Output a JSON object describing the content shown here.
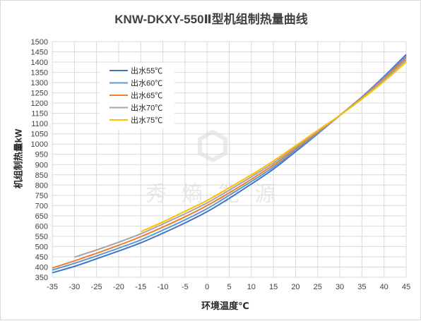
{
  "chart_data": {
    "type": "line",
    "title": "KNW-DKXY-550Ⅱ型机组制热量曲线",
    "xlabel": "环境温度℃",
    "ylabel": "机组制热量kW",
    "xlim": [
      -35,
      45
    ],
    "ylim": [
      350,
      1500
    ],
    "x_ticks": [
      -35,
      -30,
      -25,
      -20,
      -15,
      -10,
      -5,
      0,
      5,
      10,
      15,
      20,
      25,
      30,
      35,
      40,
      45
    ],
    "y_ticks": [
      350,
      400,
      450,
      500,
      550,
      600,
      650,
      700,
      750,
      800,
      850,
      900,
      950,
      1000,
      1050,
      1100,
      1150,
      1200,
      1250,
      1300,
      1350,
      1400,
      1450,
      1500
    ],
    "grid": true,
    "legend_position": "upper-left",
    "series": [
      {
        "name": "出水55℃",
        "color": "#4472c4",
        "x": [
          -35,
          -30,
          -25,
          -20,
          -15,
          -10,
          -5,
          0,
          5,
          10,
          15,
          20,
          25,
          30,
          35,
          40,
          45
        ],
        "y": [
          372,
          403,
          440,
          478,
          518,
          565,
          615,
          670,
          735,
          805,
          878,
          963,
          1050,
          1140,
          1230,
          1330,
          1437
        ]
      },
      {
        "name": "出水60℃",
        "color": "#5b9bd5",
        "x": [
          -35,
          -30,
          -25,
          -20,
          -15,
          -10,
          -5,
          0,
          5,
          10,
          15,
          20,
          25,
          30,
          35,
          40,
          45
        ],
        "y": [
          385,
          418,
          454,
          492,
          532,
          580,
          630,
          685,
          750,
          817,
          888,
          970,
          1053,
          1140,
          1228,
          1325,
          1428
        ]
      },
      {
        "name": "出水65℃",
        "color": "#ed7d31",
        "x": [
          -35,
          -30,
          -25,
          -20,
          -15,
          -10,
          -5,
          0,
          5,
          10,
          15,
          20,
          25,
          30,
          35,
          40,
          45
        ],
        "y": [
          395,
          430,
          467,
          506,
          548,
          595,
          645,
          700,
          762,
          828,
          898,
          978,
          1058,
          1140,
          1226,
          1320,
          1420
        ]
      },
      {
        "name": "出水70℃",
        "color": "#a5a5a5",
        "x": [
          -30,
          -25,
          -20,
          -15,
          -10,
          -5,
          0,
          5,
          10,
          15,
          20,
          25,
          30,
          35,
          40,
          45
        ],
        "y": [
          448,
          483,
          521,
          562,
          610,
          660,
          713,
          775,
          840,
          908,
          985,
          1062,
          1140,
          1223,
          1314,
          1410
        ]
      },
      {
        "name": "出水75℃",
        "color": "#ffc000",
        "x": [
          -15,
          -10,
          -5,
          0,
          5,
          10,
          15,
          20,
          25,
          30,
          35,
          40,
          45
        ],
        "y": [
          572,
          620,
          672,
          725,
          787,
          850,
          918,
          992,
          1067,
          1140,
          1220,
          1306,
          1400
        ]
      }
    ]
  }
}
